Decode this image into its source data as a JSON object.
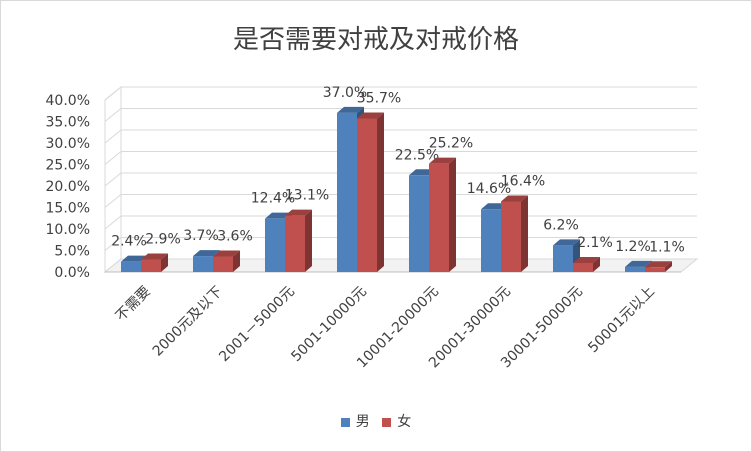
{
  "chart_data": {
    "type": "bar",
    "title": "是否需要对戒及对戒价格",
    "categories": [
      "不需要",
      "2000元及以下",
      "2001－5000元",
      "5001-10000元",
      "10001-20000元",
      "20001-30000元",
      "30001-50000元",
      "50001元以上"
    ],
    "series": [
      {
        "name": "男",
        "values": [
          2.4,
          3.7,
          12.4,
          37.0,
          22.5,
          14.6,
          6.2,
          1.2
        ],
        "labels": [
          "2.4%",
          "3.7%",
          "12.4%",
          "37.0%",
          "22.5%",
          "14.6%",
          "6.2%",
          "1.2%"
        ],
        "color": "#4f81bd"
      },
      {
        "name": "女",
        "values": [
          2.9,
          3.6,
          13.1,
          35.7,
          25.2,
          16.4,
          2.1,
          1.1
        ],
        "labels": [
          "2.9%",
          "3.6%",
          "13.1%",
          "35.7%",
          "25.2%",
          "16.4%",
          "2.1%",
          "1.1%"
        ],
        "color": "#c0504d"
      }
    ],
    "ylim": [
      0,
      40
    ],
    "yticks": [
      "0.0%",
      "5.0%",
      "10.0%",
      "15.0%",
      "20.0%",
      "25.0%",
      "30.0%",
      "35.0%",
      "40.0%"
    ],
    "grid": true,
    "legend": "bottom"
  }
}
